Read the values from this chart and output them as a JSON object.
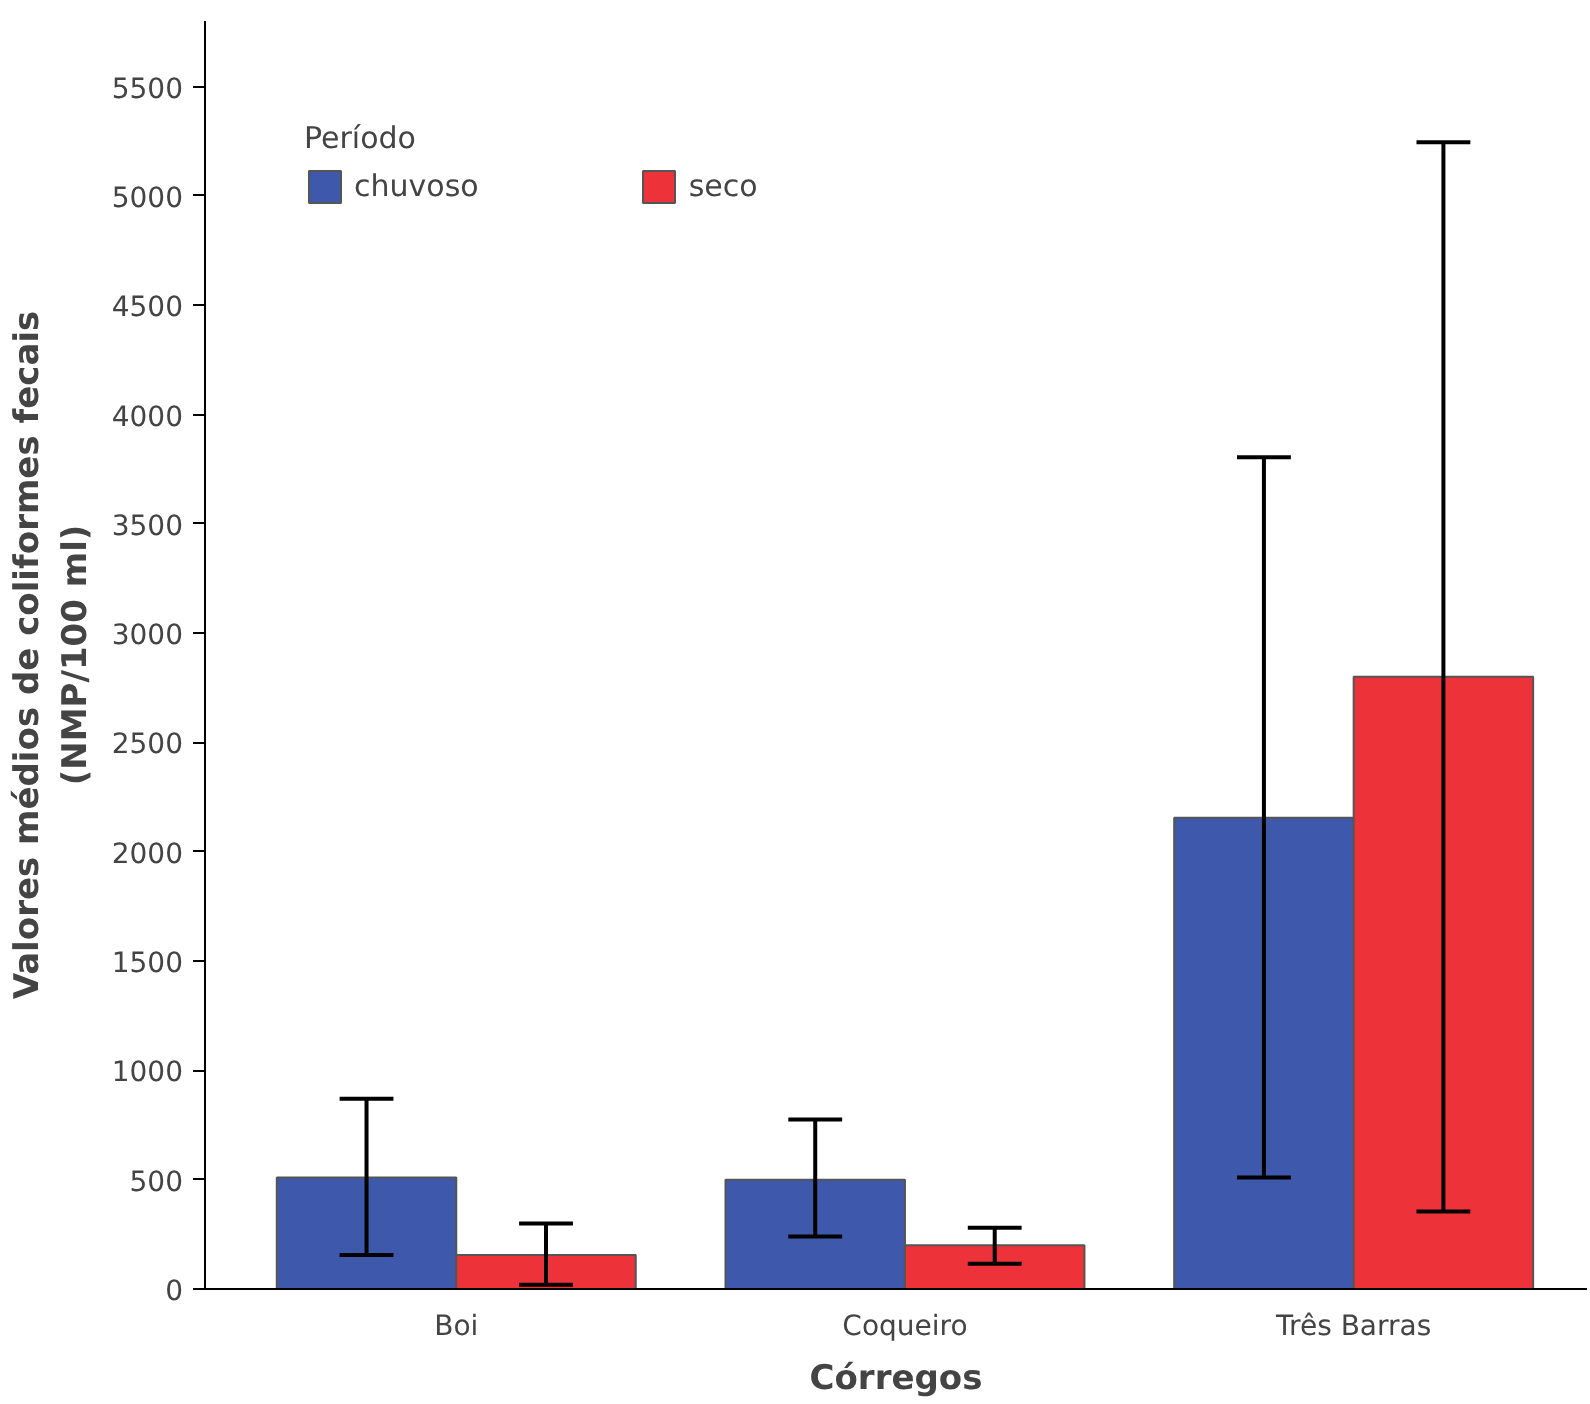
{
  "chart_data": {
    "type": "bar",
    "xlabel": "Córregos",
    "ylabel": "Valores médios de coliformes fecais\n(NMP/100 ml)",
    "legend_title": "Período",
    "categories": [
      "Boi",
      "Coqueiro",
      "Três Barras"
    ],
    "series": [
      {
        "name": "chuvoso",
        "color": "#3e58ac",
        "values": [
          510,
          500,
          2155
        ],
        "errors": [
          [
            155,
            870
          ],
          [
            240,
            775
          ],
          [
            510,
            3805
          ]
        ]
      },
      {
        "name": "seco",
        "color": "#ee3239",
        "values": [
          155,
          200,
          2800
        ],
        "errors": [
          [
            20,
            300
          ],
          [
            115,
            280
          ],
          [
            355,
            5245
          ]
        ]
      }
    ],
    "ylim": [
      0,
      5800
    ],
    "yticks": [
      0,
      500,
      1000,
      1500,
      2000,
      2500,
      3000,
      3500,
      4000,
      4500,
      5000,
      5500
    ],
    "grid": false,
    "legend": "top left"
  }
}
